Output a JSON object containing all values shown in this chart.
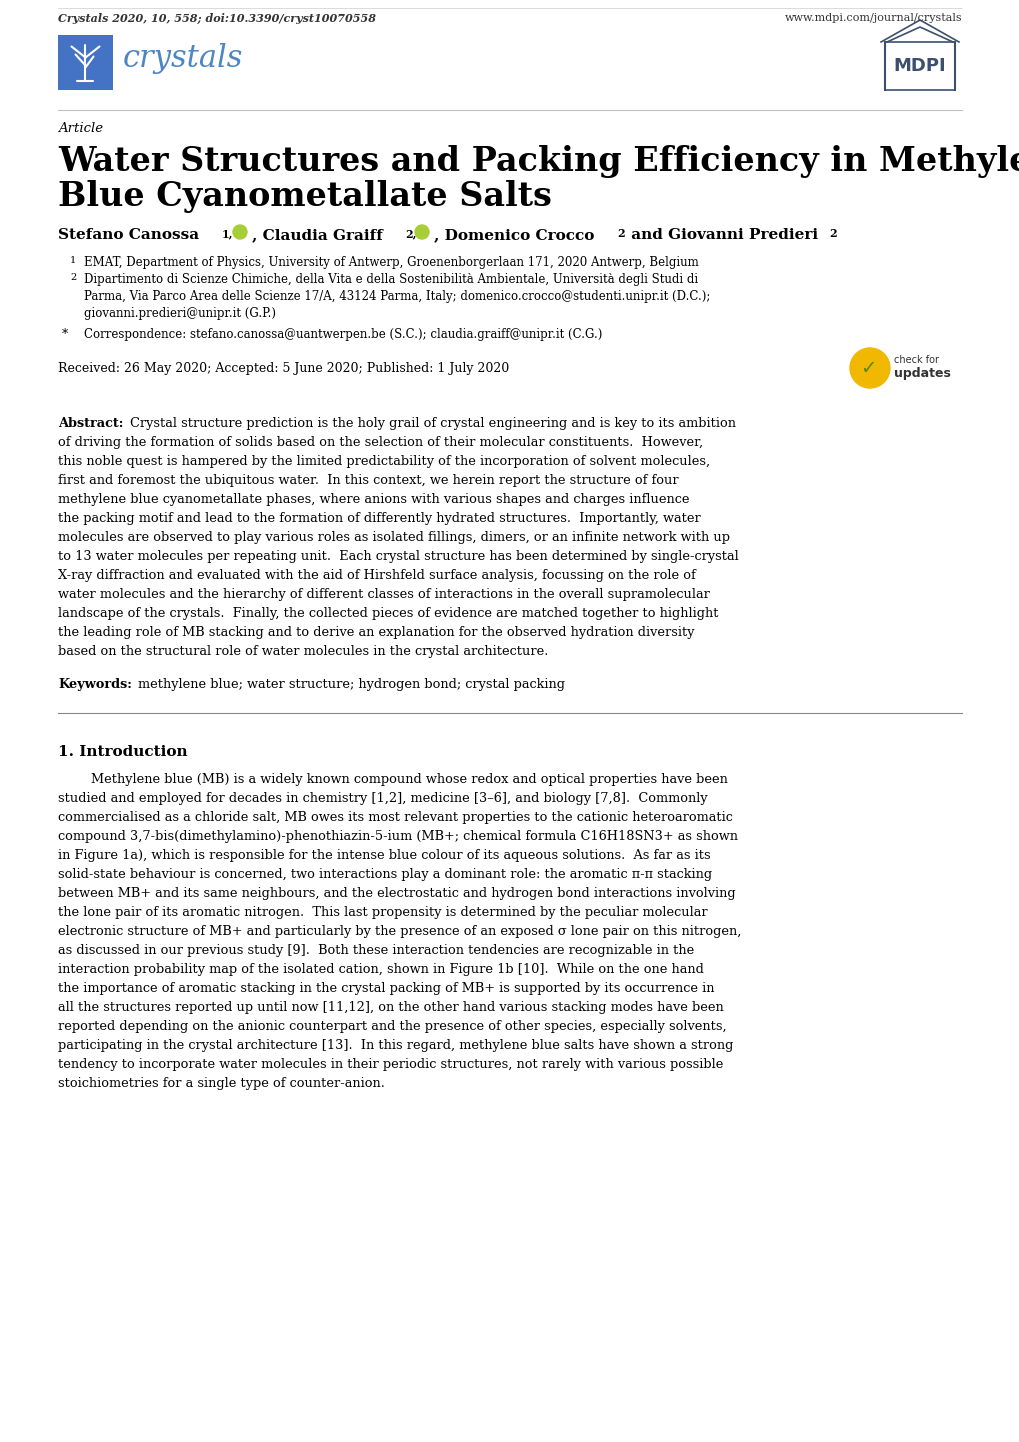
{
  "title_line1": "Water Structures and Packing Efficiency in Methylene",
  "title_line2": "Blue Cyanometallate Salts",
  "article_label": "Article",
  "affil1": "EMAT, Department of Physics, University of Antwerp, Groenenborgerlaan 171, 2020 Antwerp, Belgium",
  "affil2_line1": "Dipartimento di Scienze Chimiche, della Vita e della Sostenibilità Ambientale, Università degli Studi di",
  "affil2_line2": "Parma, Via Parco Area delle Scienze 17/A, 43124 Parma, Italy; domenico.crocco@studenti.unipr.it (D.C.);",
  "affil2_line3": "giovanni.predieri@unipr.it (G.P.)",
  "correspondence": "Correspondence: stefano.canossa@uantwerpen.be (S.C.); claudia.graiff@unipr.it (C.G.)",
  "received": "Received: 26 May 2020; Accepted: 5 June 2020; Published: 1 July 2020",
  "keywords_body": "methylene blue; water structure; hydrogen bond; crystal packing",
  "section_title": "1. Introduction",
  "journal_footer": "Crystals 2020, 10, 558; doi:10.3390/cryst10070558",
  "website_footer": "www.mdpi.com/journal/crystals",
  "bg_color": "#ffffff",
  "text_color": "#000000",
  "header_blue": "#4472c4",
  "crystals_text_color": "#4e86c4",
  "mdpi_border_color": "#3d4f6e",
  "abstract_lines": [
    "Crystal structure prediction is the holy grail of crystal engineering and is key to its ambition",
    "of driving the formation of solids based on the selection of their molecular constituents.  However,",
    "this noble quest is hampered by the limited predictability of the incorporation of solvent molecules,",
    "first and foremost the ubiquitous water.  In this context, we herein report the structure of four",
    "methylene blue cyanometallate phases, where anions with various shapes and charges influence",
    "the packing motif and lead to the formation of differently hydrated structures.  Importantly, water",
    "molecules are observed to play various roles as isolated fillings, dimers, or an infinite network with up",
    "to 13 water molecules per repeating unit.  Each crystal structure has been determined by single-crystal",
    "X-ray diffraction and evaluated with the aid of Hirshfeld surface analysis, focussing on the role of",
    "water molecules and the hierarchy of different classes of interactions in the overall supramolecular",
    "landscape of the crystals.  Finally, the collected pieces of evidence are matched together to highlight",
    "the leading role of MB stacking and to derive an explanation for the observed hydration diversity",
    "based on the structural role of water molecules in the crystal architecture."
  ],
  "intro_lines": [
    "        Methylene blue (MB) is a widely known compound whose redox and optical properties have been",
    "studied and employed for decades in chemistry [1,2], medicine [3–6], and biology [7,8].  Commonly",
    "commercialised as a chloride salt, MB owes its most relevant properties to the cationic heteroaromatic",
    "compound 3,7-bis(dimethylamino)-phenothiazin-5-ium (MB+; chemical formula C16H18SN3+ as shown",
    "in Figure 1a), which is responsible for the intense blue colour of its aqueous solutions.  As far as its",
    "solid-state behaviour is concerned, two interactions play a dominant role: the aromatic π-π stacking",
    "between MB+ and its same neighbours, and the electrostatic and hydrogen bond interactions involving",
    "the lone pair of its aromatic nitrogen.  This last propensity is determined by the peculiar molecular",
    "electronic structure of MB+ and particularly by the presence of an exposed σ lone pair on this nitrogen,",
    "as discussed in our previous study [9].  Both these interaction tendencies are recognizable in the",
    "interaction probability map of the isolated cation, shown in Figure 1b [10].  While on the one hand",
    "the importance of aromatic stacking in the crystal packing of MB+ is supported by its occurrence in",
    "all the structures reported up until now [11,12], on the other hand various stacking modes have been",
    "reported depending on the anionic counterpart and the presence of other species, especially solvents,",
    "participating in the crystal architecture [13].  In this regard, methylene blue salts have shown a strong",
    "tendency to incorporate water molecules in their periodic structures, not rarely with various possible",
    "stoichiometries for a single type of counter-anion."
  ]
}
